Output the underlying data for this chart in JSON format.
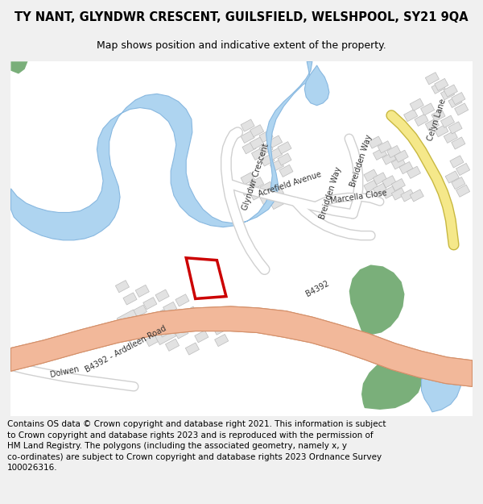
{
  "title_line1": "TY NANT, GLYNDWR CRESCENT, GUILSFIELD, WELSHPOOL, SY21 9QA",
  "title_line2": "Map shows position and indicative extent of the property.",
  "footer": "Contains OS data © Crown copyright and database right 2021. This information is subject\nto Crown copyright and database rights 2023 and is reproduced with the permission of\nHM Land Registry. The polygons (including the associated geometry, namely x, y\nco-ordinates) are subject to Crown copyright and database rights 2023 Ordnance Survey\n100026316.",
  "bg_color": "#f0f0f0",
  "map_bg": "#ffffff",
  "road_main_color": "#f2b89a",
  "road_main_edge": "#d4906a",
  "road_minor_color": "#ffffff",
  "road_minor_edge": "#cccccc",
  "water_color": "#aed4f0",
  "water_edge": "#88b8e0",
  "green_color": "#7aaf7a",
  "building_color": "#e2e2e2",
  "building_edge": "#bbbbbb",
  "plot_color": "#cc0000",
  "yellow_road_color": "#f5e88a",
  "yellow_road_edge": "#c8b840",
  "title_fontsize": 10.5,
  "subtitle_fontsize": 9,
  "footer_fontsize": 7.5,
  "label_fontsize": 7
}
